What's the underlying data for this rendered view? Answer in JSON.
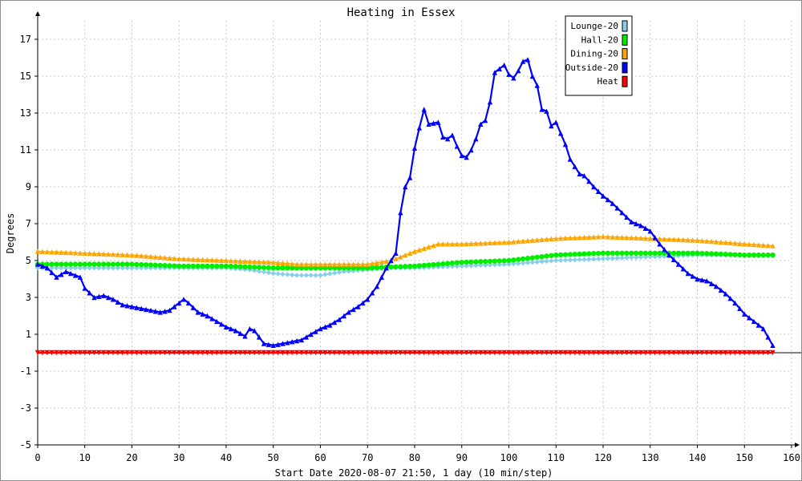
{
  "chart_data": {
    "type": "line",
    "title": "Heating in Essex",
    "xlabel": "Start Date 2020-08-07 21:50, 1 day (10 min/step)",
    "ylabel": "Degrees",
    "xlim": [
      0,
      160
    ],
    "ylim": [
      -5,
      18
    ],
    "xticks": [
      0,
      10,
      20,
      30,
      40,
      50,
      60,
      70,
      80,
      90,
      100,
      110,
      120,
      130,
      140,
      150,
      160
    ],
    "yticks": [
      -5,
      -3,
      -1,
      1,
      3,
      5,
      7,
      9,
      11,
      13,
      15,
      17
    ],
    "grid": true,
    "legend_position": "top-right",
    "series": [
      {
        "name": "Lounge-20",
        "color": "#87ceeb",
        "marker": "diamond",
        "points": [
          [
            0,
            4.6
          ],
          [
            10,
            4.6
          ],
          [
            20,
            4.6
          ],
          [
            30,
            4.6
          ],
          [
            40,
            4.6
          ],
          [
            45,
            4.5
          ],
          [
            50,
            4.3
          ],
          [
            55,
            4.2
          ],
          [
            60,
            4.2
          ],
          [
            65,
            4.4
          ],
          [
            70,
            4.5
          ],
          [
            75,
            4.6
          ],
          [
            80,
            4.6
          ],
          [
            90,
            4.7
          ],
          [
            100,
            4.8
          ],
          [
            110,
            5.0
          ],
          [
            120,
            5.1
          ],
          [
            130,
            5.2
          ],
          [
            140,
            5.3
          ],
          [
            150,
            5.3
          ],
          [
            156,
            5.3
          ]
        ]
      },
      {
        "name": "Hall-20",
        "color": "#00ee00",
        "marker": "circle",
        "points": [
          [
            0,
            4.8
          ],
          [
            10,
            4.8
          ],
          [
            20,
            4.8
          ],
          [
            30,
            4.7
          ],
          [
            40,
            4.7
          ],
          [
            50,
            4.6
          ],
          [
            60,
            4.6
          ],
          [
            70,
            4.6
          ],
          [
            80,
            4.7
          ],
          [
            90,
            4.9
          ],
          [
            100,
            5.0
          ],
          [
            110,
            5.3
          ],
          [
            120,
            5.4
          ],
          [
            130,
            5.4
          ],
          [
            140,
            5.4
          ],
          [
            150,
            5.3
          ],
          [
            156,
            5.3
          ]
        ]
      },
      {
        "name": "Dining-20",
        "color": "#ffa500",
        "marker": "triangle-up",
        "points": [
          [
            0,
            5.5
          ],
          [
            10,
            5.4
          ],
          [
            20,
            5.3
          ],
          [
            30,
            5.1
          ],
          [
            40,
            5.0
          ],
          [
            50,
            4.9
          ],
          [
            55,
            4.8
          ],
          [
            60,
            4.8
          ],
          [
            70,
            4.8
          ],
          [
            75,
            5.0
          ],
          [
            80,
            5.5
          ],
          [
            85,
            5.9
          ],
          [
            90,
            5.9
          ],
          [
            100,
            6.0
          ],
          [
            110,
            6.2
          ],
          [
            120,
            6.3
          ],
          [
            130,
            6.2
          ],
          [
            140,
            6.1
          ],
          [
            150,
            5.9
          ],
          [
            156,
            5.8
          ]
        ]
      },
      {
        "name": "Outside-20",
        "color": "#0000ff",
        "marker": "triangle-up",
        "points": [
          [
            0,
            4.8
          ],
          [
            2,
            4.6
          ],
          [
            4,
            4.1
          ],
          [
            6,
            4.4
          ],
          [
            8,
            4.2
          ],
          [
            9,
            4.1
          ],
          [
            10,
            3.5
          ],
          [
            12,
            3.0
          ],
          [
            14,
            3.1
          ],
          [
            16,
            2.9
          ],
          [
            18,
            2.6
          ],
          [
            20,
            2.5
          ],
          [
            24,
            2.3
          ],
          [
            26,
            2.2
          ],
          [
            28,
            2.3
          ],
          [
            30,
            2.7
          ],
          [
            31,
            2.9
          ],
          [
            32,
            2.7
          ],
          [
            34,
            2.2
          ],
          [
            36,
            2.0
          ],
          [
            38,
            1.7
          ],
          [
            40,
            1.4
          ],
          [
            42,
            1.2
          ],
          [
            44,
            0.9
          ],
          [
            45,
            1.3
          ],
          [
            46,
            1.2
          ],
          [
            48,
            0.5
          ],
          [
            50,
            0.4
          ],
          [
            52,
            0.5
          ],
          [
            54,
            0.6
          ],
          [
            56,
            0.7
          ],
          [
            58,
            1.0
          ],
          [
            60,
            1.3
          ],
          [
            62,
            1.5
          ],
          [
            64,
            1.8
          ],
          [
            66,
            2.2
          ],
          [
            68,
            2.5
          ],
          [
            70,
            2.9
          ],
          [
            72,
            3.6
          ],
          [
            74,
            4.6
          ],
          [
            76,
            5.4
          ],
          [
            77,
            7.6
          ],
          [
            78,
            9.0
          ],
          [
            79,
            9.5
          ],
          [
            80,
            11.1
          ],
          [
            81,
            12.2
          ],
          [
            82,
            13.2
          ],
          [
            83,
            12.4
          ],
          [
            85,
            12.5
          ],
          [
            86,
            11.7
          ],
          [
            87,
            11.6
          ],
          [
            88,
            11.8
          ],
          [
            89,
            11.2
          ],
          [
            90,
            10.7
          ],
          [
            91,
            10.6
          ],
          [
            92,
            11.0
          ],
          [
            93,
            11.6
          ],
          [
            94,
            12.4
          ],
          [
            95,
            12.6
          ],
          [
            96,
            13.6
          ],
          [
            97,
            15.2
          ],
          [
            98,
            15.4
          ],
          [
            99,
            15.6
          ],
          [
            100,
            15.1
          ],
          [
            101,
            14.9
          ],
          [
            102,
            15.3
          ],
          [
            103,
            15.8
          ],
          [
            104,
            15.9
          ],
          [
            105,
            15.0
          ],
          [
            106,
            14.5
          ],
          [
            107,
            13.2
          ],
          [
            108,
            13.1
          ],
          [
            109,
            12.3
          ],
          [
            110,
            12.5
          ],
          [
            111,
            11.9
          ],
          [
            112,
            11.3
          ],
          [
            113,
            10.5
          ],
          [
            114,
            10.1
          ],
          [
            115,
            9.7
          ],
          [
            116,
            9.6
          ],
          [
            118,
            9.0
          ],
          [
            120,
            8.5
          ],
          [
            122,
            8.1
          ],
          [
            124,
            7.6
          ],
          [
            126,
            7.1
          ],
          [
            128,
            6.9
          ],
          [
            130,
            6.6
          ],
          [
            132,
            5.9
          ],
          [
            134,
            5.3
          ],
          [
            136,
            4.8
          ],
          [
            138,
            4.3
          ],
          [
            140,
            4.0
          ],
          [
            142,
            3.9
          ],
          [
            144,
            3.6
          ],
          [
            146,
            3.2
          ],
          [
            148,
            2.7
          ],
          [
            150,
            2.1
          ],
          [
            152,
            1.7
          ],
          [
            154,
            1.3
          ],
          [
            156,
            0.4
          ]
        ]
      },
      {
        "name": "Heat",
        "color": "#ff0000",
        "marker": "triangle-down",
        "points": [
          [
            0,
            0
          ],
          [
            156,
            0
          ]
        ]
      }
    ]
  }
}
